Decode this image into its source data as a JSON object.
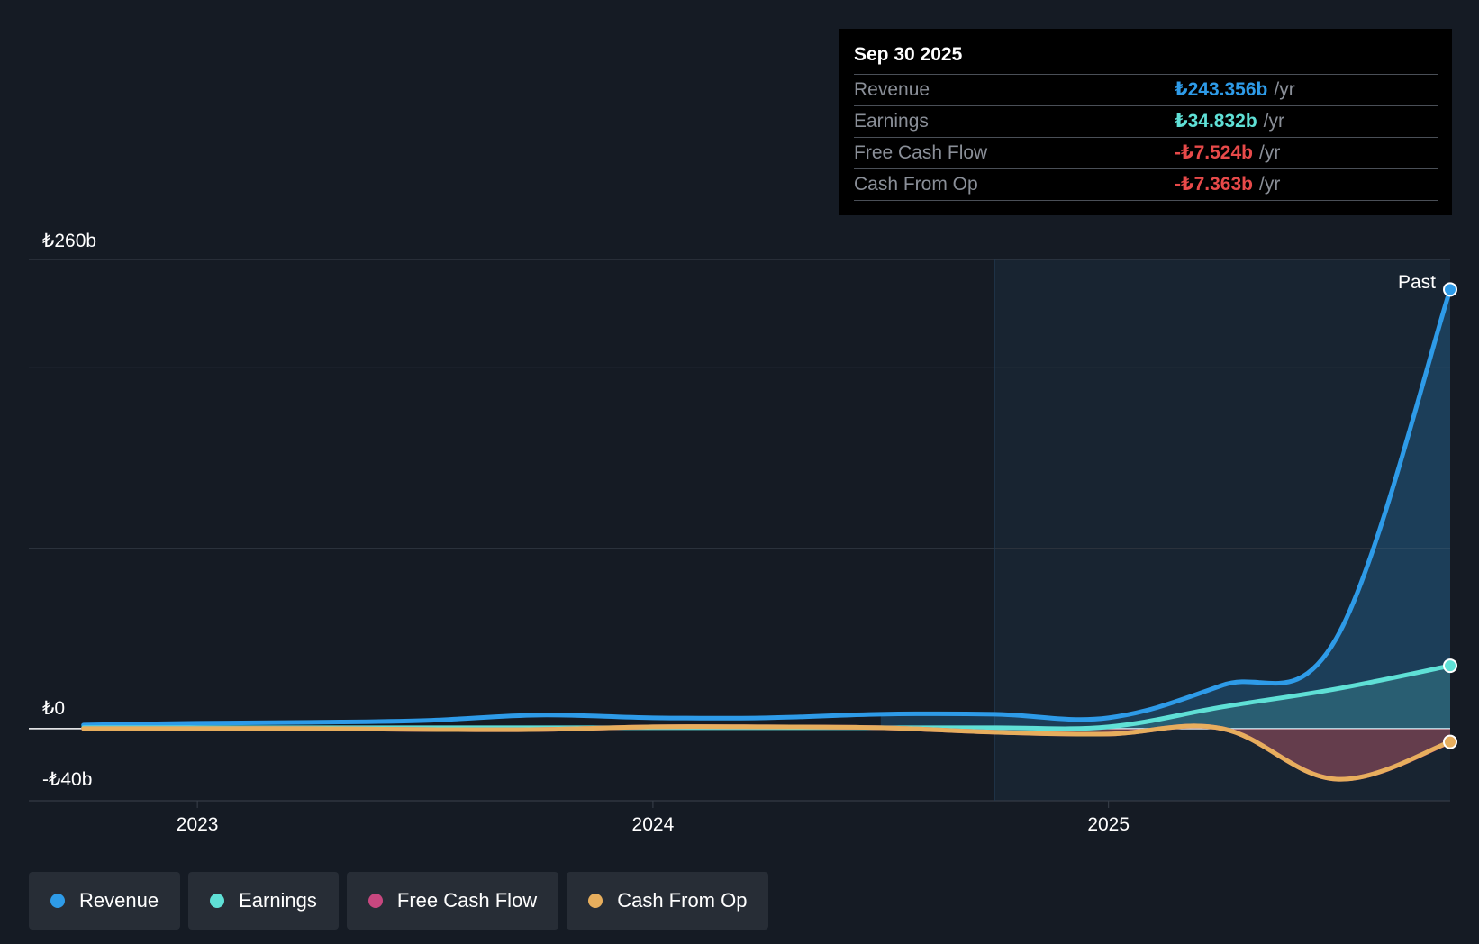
{
  "tooltip": {
    "date": "Sep 30 2025",
    "rows": [
      {
        "label": "Revenue",
        "value": "₺243.356b",
        "unit": "/yr",
        "color": "#2e9be8"
      },
      {
        "label": "Earnings",
        "value": "₺34.832b",
        "unit": "/yr",
        "color": "#5fe0d6"
      },
      {
        "label": "Free Cash Flow",
        "value": "-₺7.524b",
        "unit": "/yr",
        "color": "#e84a4a"
      },
      {
        "label": "Cash From Op",
        "value": "-₺7.363b",
        "unit": "/yr",
        "color": "#e84a4a"
      }
    ]
  },
  "legend": [
    {
      "label": "Revenue",
      "color": "#2e9be8"
    },
    {
      "label": "Earnings",
      "color": "#5fe0d6"
    },
    {
      "label": "Free Cash Flow",
      "color": "#c8477f"
    },
    {
      "label": "Cash From Op",
      "color": "#e7ae5d"
    }
  ],
  "chart_data": {
    "type": "line",
    "title": "",
    "past_label": "Past",
    "y_tick_labels": {
      "top": "₺260b",
      "zero": "₺0",
      "bottom": "-₺40b"
    },
    "ylim": [
      -40,
      260
    ],
    "xlim": [
      2022.63,
      2025.75
    ],
    "past_start": 2024.75,
    "x_ticks": [
      {
        "value": 2023.0,
        "label": "2023"
      },
      {
        "value": 2024.0,
        "label": "2024"
      },
      {
        "value": 2025.0,
        "label": "2025"
      }
    ],
    "series": [
      {
        "name": "Revenue",
        "color": "#2e9be8",
        "x": [
          2022.75,
          2023.0,
          2023.25,
          2023.5,
          2023.75,
          2024.0,
          2024.25,
          2024.5,
          2024.75,
          2025.0,
          2025.25,
          2025.5,
          2025.75
        ],
        "values": [
          2,
          3,
          3.5,
          4.5,
          7.5,
          6,
          6,
          8,
          8,
          6,
          24,
          50,
          243.356
        ]
      },
      {
        "name": "Earnings",
        "color": "#5fe0d6",
        "x": [
          2022.75,
          2023.0,
          2023.25,
          2023.5,
          2023.75,
          2024.0,
          2024.25,
          2024.5,
          2024.75,
          2025.0,
          2025.25,
          2025.5,
          2025.75
        ],
        "values": [
          0.5,
          0.5,
          0.5,
          0.5,
          0.5,
          0.5,
          0.5,
          0.5,
          0.5,
          1,
          12,
          22,
          34.832
        ]
      },
      {
        "name": "Free Cash Flow",
        "color": "#c8477f",
        "x": [
          2022.75,
          2023.0,
          2023.25,
          2023.5,
          2023.75,
          2024.0,
          2024.25,
          2024.5,
          2024.75,
          2025.0,
          2025.25,
          2025.5,
          2025.75
        ],
        "values": [
          0,
          0,
          0,
          -0.5,
          -0.5,
          1,
          1,
          0.5,
          -2,
          -3,
          0,
          -28,
          -7.524
        ]
      },
      {
        "name": "Cash From Op",
        "color": "#e7ae5d",
        "x": [
          2022.75,
          2023.0,
          2023.25,
          2023.5,
          2023.75,
          2024.0,
          2024.25,
          2024.5,
          2024.75,
          2025.0,
          2025.25,
          2025.5,
          2025.75
        ],
        "values": [
          0,
          0,
          0,
          -0.5,
          -0.5,
          1,
          1,
          0.5,
          -2,
          -3,
          0,
          -28,
          -7.363
        ]
      }
    ]
  }
}
